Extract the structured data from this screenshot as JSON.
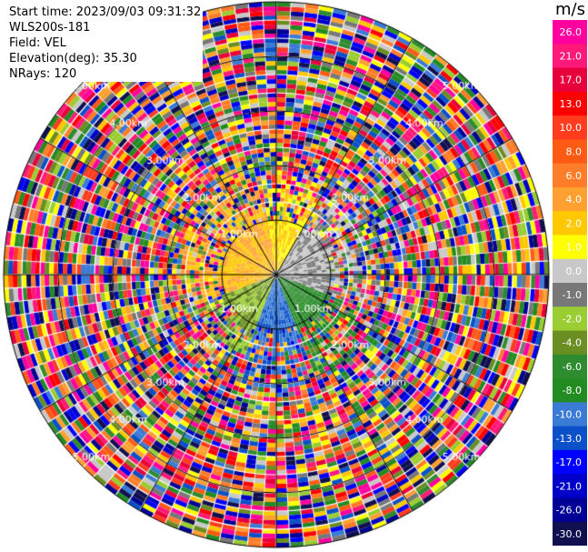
{
  "info": {
    "start_time": "Start time: 2023/09/03 09:31:32",
    "station": "WLS200s-181",
    "field": "Field: VEL",
    "elevation": "Elevation(deg): 35.30",
    "nrays": "NRays: 120"
  },
  "chart_data": {
    "type": "heatmap",
    "projection": "polar-ppi",
    "field": "VEL",
    "unit": "m/s",
    "n_rays": 120,
    "range_ring_labels": [
      "1.00km",
      "2.00km",
      "3.00km",
      "4.00km",
      "5.00km"
    ],
    "colorbar": {
      "unit": "m/s",
      "ticks": [
        "26.0",
        "21.0",
        "17.0",
        "13.0",
        "10.0",
        "8.0",
        "6.0",
        "4.0",
        "2.0",
        "1.0",
        "0.0",
        "-1.0",
        "-2.0",
        "-4.0",
        "-6.0",
        "-8.0",
        "-10.0",
        "-13.0",
        "-17.0",
        "-21.0",
        "-26.0",
        "-30.0"
      ],
      "colors": [
        "#ff00a0",
        "#ff1a7a",
        "#e8003c",
        "#ff0000",
        "#ff3c1e",
        "#ff5a14",
        "#ff7d28",
        "#ffa030",
        "#ffc800",
        "#ffff00",
        "#c8c8c8",
        "#787878",
        "#9acd32",
        "#6b8e23",
        "#2e8b2e",
        "#228b22",
        "#3a7bd5",
        "#0a50c8",
        "#0000ff",
        "#0000c8",
        "#000096",
        "#101050"
      ]
    },
    "near_field_pattern": "yellow/orange west-north (positive), green south-east (negative), blue south (negative), grey centre",
    "far_field": "noise (random colours)"
  }
}
